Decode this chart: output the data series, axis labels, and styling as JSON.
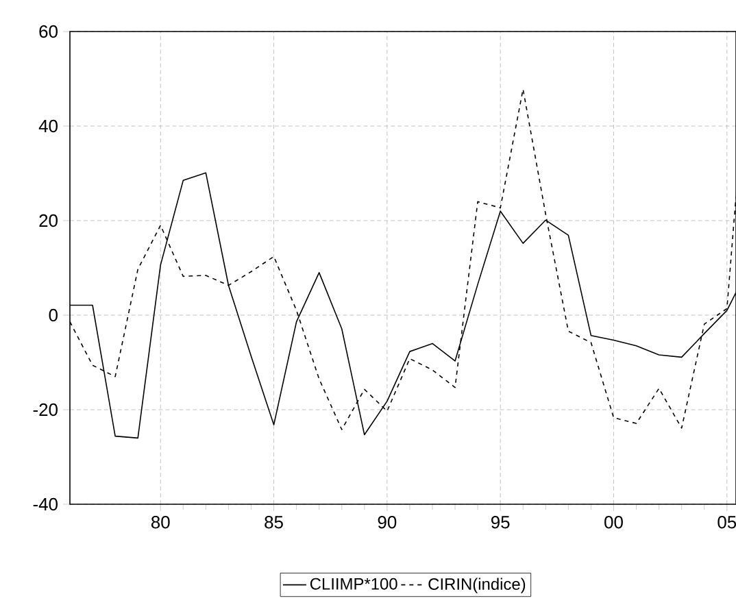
{
  "chart_data": {
    "type": "line",
    "x": [
      1976,
      1977,
      1978,
      1979,
      1980,
      1981,
      1982,
      1983,
      1984,
      1985,
      1986,
      1987,
      1988,
      1989,
      1990,
      1991,
      1992,
      1993,
      1994,
      1995,
      1996,
      1997,
      1998,
      1999,
      2000,
      2001,
      2002,
      2003,
      2004,
      2005,
      2005.4
    ],
    "series": [
      {
        "name": "CLIIMP*100",
        "color": "#000000",
        "line_style": "solid",
        "values": [
          2.1,
          2.1,
          -25.6,
          -26,
          10.6,
          28.5,
          30.1,
          6.3,
          -8.7,
          -23.2,
          -1.4,
          9.0,
          -2.9,
          -25.3,
          -18.2,
          -7.7,
          -6.0,
          -9.7,
          6.5,
          22.0,
          15.2,
          20.1,
          16.9,
          -4.3,
          -5.3,
          -6.5,
          -8.4,
          -8.9,
          -3.9,
          1.0,
          4.8
        ]
      },
      {
        "name": "CIRIN(indice)",
        "color": "#000000",
        "line_style": "dashed",
        "values": [
          -1.4,
          -10.6,
          -13.0,
          9.7,
          19.0,
          8.2,
          8.4,
          6.3,
          9.2,
          12.4,
          1.0,
          -13.5,
          -24.2,
          -15.7,
          -20.3,
          -9.2,
          -11.6,
          -15.3,
          24.0,
          22.7,
          47.8,
          21.3,
          -3.4,
          -5.8,
          -21.7,
          -22.9,
          -15.5,
          -23.9,
          -1.9,
          1.4,
          25.1
        ]
      }
    ],
    "xlim": [
      1976,
      2005.4
    ],
    "ylim": [
      -40,
      60
    ],
    "xticks": [
      {
        "value": 1980,
        "label": "80"
      },
      {
        "value": 1985,
        "label": "85"
      },
      {
        "value": 1990,
        "label": "90"
      },
      {
        "value": 1995,
        "label": "95"
      },
      {
        "value": 2000,
        "label": "00"
      },
      {
        "value": 2005,
        "label": "05"
      }
    ],
    "yticks": [
      -40,
      -20,
      0,
      20,
      40,
      60
    ],
    "grid": true,
    "legend": "bottom"
  }
}
